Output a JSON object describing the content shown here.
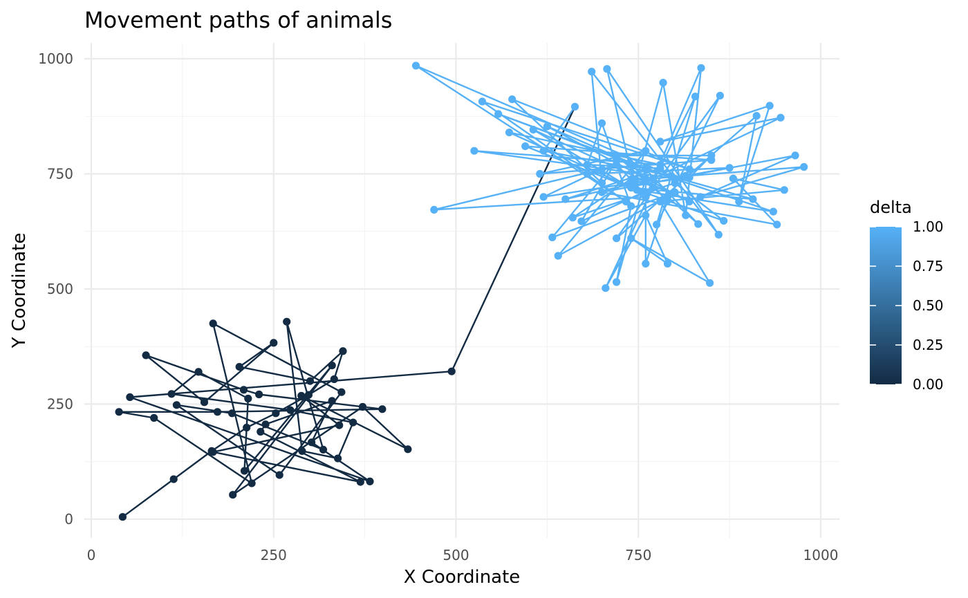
{
  "chart_data": {
    "type": "line",
    "title": "Movement paths of animals",
    "xlabel": "X Coordinate",
    "ylabel": "Y Coordinate",
    "xlim": [
      0,
      1000
    ],
    "ylim": [
      0,
      1000
    ],
    "x_ticks": [
      "0",
      "250",
      "500",
      "750",
      "1000"
    ],
    "y_ticks": [
      "0",
      "250",
      "500",
      "750",
      "1000"
    ],
    "grid": true,
    "legend": {
      "title": "delta",
      "position": "right",
      "type": "colorbar",
      "range": [
        0,
        1
      ],
      "labels": [
        "0.00",
        "0.25",
        "0.50",
        "0.75",
        "1.00"
      ],
      "color_low": "#132B43",
      "color_high": "#56B1F7"
    },
    "series": [
      {
        "delta": 0,
        "color": "#132B43",
        "points": [
          [
            43,
            5
          ],
          [
            113,
            87
          ],
          [
            165,
            148
          ],
          [
            213,
            199
          ],
          [
            253,
            230
          ],
          [
            298,
            270
          ],
          [
            333,
            304
          ],
          [
            345,
            365
          ],
          [
            300,
            300
          ],
          [
            203,
            331
          ],
          [
            250,
            383
          ],
          [
            155,
            254
          ],
          [
            75,
            356
          ],
          [
            209,
            281
          ],
          [
            230,
            271
          ],
          [
            399,
            239
          ],
          [
            173,
            233
          ],
          [
            38,
            233
          ],
          [
            86,
            220
          ],
          [
            220,
            78
          ],
          [
            167,
            425
          ],
          [
            343,
            276
          ],
          [
            258,
            96
          ],
          [
            117,
            248
          ],
          [
            193,
            230
          ],
          [
            318,
            151
          ],
          [
            268,
            429
          ],
          [
            289,
            148
          ],
          [
            338,
            132
          ],
          [
            359,
            210
          ],
          [
            273,
            237
          ],
          [
            110,
            272
          ],
          [
            147,
            320
          ],
          [
            215,
            262
          ],
          [
            210,
            105
          ],
          [
            330,
            334
          ],
          [
            194,
            53
          ],
          [
            372,
            244
          ],
          [
            434,
            152
          ],
          [
            288,
            268
          ],
          [
            340,
            204
          ],
          [
            167,
            146
          ],
          [
            369,
            81
          ],
          [
            232,
            190
          ],
          [
            239,
            206
          ],
          [
            330,
            257
          ],
          [
            302,
            167
          ],
          [
            382,
            82
          ],
          [
            53,
            265
          ],
          [
            494,
            321
          ],
          [
            663,
            896
          ]
        ]
      },
      {
        "delta": 1,
        "color": "#56B1F7",
        "points": [
          [
            663,
            896
          ],
          [
            620,
            800
          ],
          [
            795,
            746
          ],
          [
            445,
            985
          ],
          [
            733,
            690
          ],
          [
            536,
            907
          ],
          [
            820,
            760
          ],
          [
            577,
            912
          ],
          [
            700,
            730
          ],
          [
            686,
            972
          ],
          [
            860,
            618
          ],
          [
            707,
            978
          ],
          [
            745,
            720
          ],
          [
            784,
            948
          ],
          [
            815,
            660
          ],
          [
            836,
            980
          ],
          [
            760,
            700
          ],
          [
            828,
            918
          ],
          [
            775,
            640
          ],
          [
            862,
            920
          ],
          [
            720,
            610
          ],
          [
            912,
            876
          ],
          [
            888,
            690
          ],
          [
            930,
            898
          ],
          [
            780,
            820
          ],
          [
            945,
            872
          ],
          [
            770,
            740
          ],
          [
            977,
            765
          ],
          [
            835,
            700
          ],
          [
            965,
            790
          ],
          [
            700,
            710
          ],
          [
            940,
            640
          ],
          [
            880,
            740
          ],
          [
            950,
            715
          ],
          [
            780,
            690
          ],
          [
            848,
            513
          ],
          [
            740,
            610
          ],
          [
            790,
            555
          ],
          [
            760,
            660
          ],
          [
            705,
            502
          ],
          [
            770,
            720
          ],
          [
            672,
            647
          ],
          [
            720,
            780
          ],
          [
            632,
            612
          ],
          [
            800,
            710
          ],
          [
            640,
            572
          ],
          [
            760,
            800
          ],
          [
            615,
            750
          ],
          [
            850,
            780
          ],
          [
            595,
            810
          ],
          [
            755,
            710
          ],
          [
            573,
            840
          ],
          [
            780,
            770
          ],
          [
            525,
            800
          ],
          [
            800,
            740
          ],
          [
            558,
            880
          ],
          [
            760,
            760
          ],
          [
            625,
            853
          ],
          [
            820,
            690
          ],
          [
            606,
            846
          ],
          [
            760,
            700
          ],
          [
            470,
            672
          ],
          [
            700,
            760
          ],
          [
            620,
            700
          ],
          [
            760,
            735
          ],
          [
            650,
            695
          ],
          [
            780,
            762
          ],
          [
            680,
            770
          ],
          [
            700,
            860
          ],
          [
            740,
            680
          ],
          [
            720,
            515
          ],
          [
            760,
            740
          ],
          [
            760,
            555
          ],
          [
            790,
            700
          ],
          [
            832,
            641
          ],
          [
            760,
            760
          ],
          [
            660,
            655
          ],
          [
            800,
            730
          ],
          [
            867,
            648
          ],
          [
            740,
            720
          ],
          [
            907,
            695
          ],
          [
            760,
            760
          ],
          [
            935,
            668
          ],
          [
            748,
            715
          ],
          [
            738,
            725
          ],
          [
            820,
            742
          ],
          [
            850,
            790
          ],
          [
            720,
            790
          ],
          [
            790,
            692
          ],
          [
            738,
            774
          ],
          [
            745,
            736
          ],
          [
            815,
            746
          ],
          [
            875,
            763
          ],
          [
            680,
            750
          ],
          [
            720,
            770
          ],
          [
            740,
            738
          ],
          [
            800,
            708
          ]
        ]
      }
    ]
  }
}
